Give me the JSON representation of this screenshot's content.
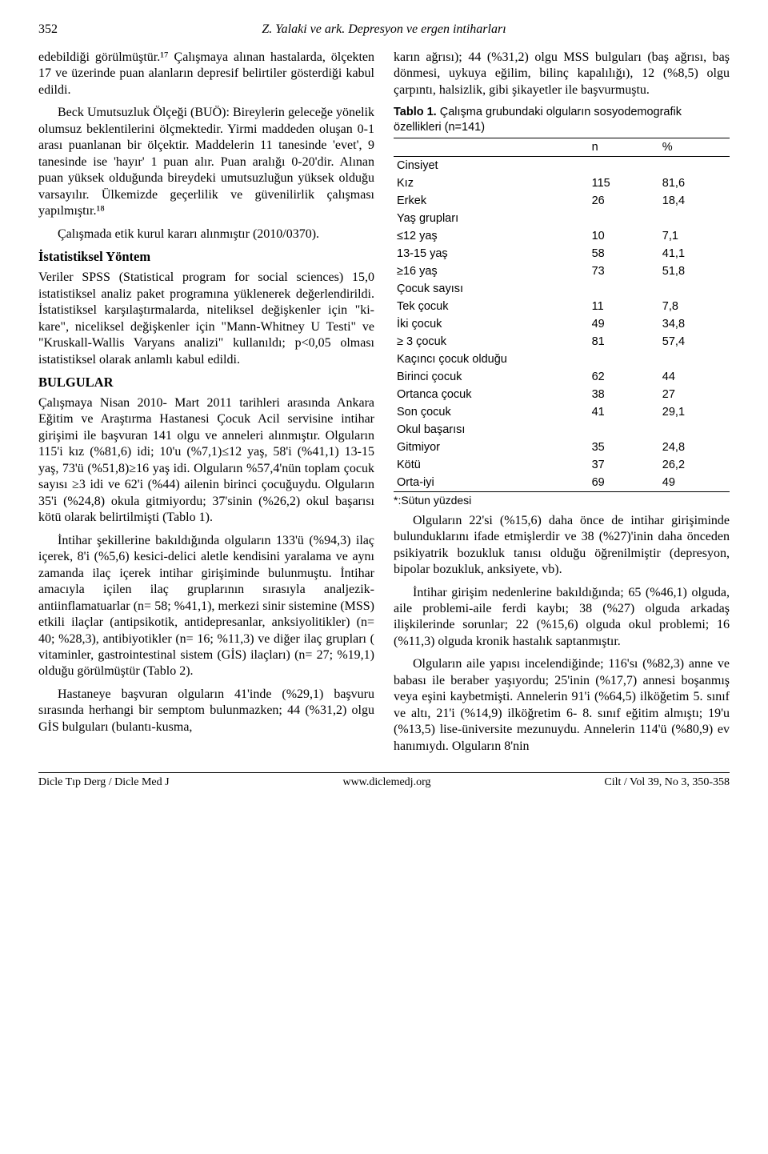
{
  "header": {
    "page_number": "352",
    "running_head": "Z. Yalaki ve ark. Depresyon ve ergen intiharları"
  },
  "left": {
    "p1": "edebildiği görülmüştür.¹⁷ Çalışmaya alınan hastalarda, ölçekten 17 ve üzerinde puan alanların depresif belirtiler gösterdiği kabul edildi.",
    "p2": "Beck Umutsuzluk Ölçeği (BUÖ): Bireylerin geleceğe yönelik olumsuz beklentilerini ölçmektedir. Yirmi maddeden oluşan 0-1 arası puanlanan bir ölçektir. Maddelerin 11 tanesinde 'evet', 9 tanesinde ise 'hayır' 1 puan alır. Puan aralığı 0-20'dir. Alınan puan yüksek olduğunda bireydeki umutsuzluğun yüksek olduğu varsayılır. Ülkemizde geçerlilik ve güvenilirlik çalışması yapılmıştır.¹⁸",
    "p3": "Çalışmada etik kurul kararı alınmıştır (2010/0370).",
    "h1": "İstatistiksel Yöntem",
    "p4": "Veriler SPSS (Statistical program for social sciences) 15,0 istatistiksel analiz paket programına yüklenerek değerlendirildi. İstatistiksel karşılaştırmalarda, niteliksel değişkenler için \"ki-kare\", niceliksel değişkenler için \"Mann-Whitney U Testi\" ve \"Kruskall-Wallis Varyans analizi\" kullanıldı; p<0,05 olması istatistiksel olarak anlamlı kabul edildi.",
    "h2": "BULGULAR",
    "p5": "Çalışmaya Nisan 2010- Mart 2011 tarihleri arasında Ankara Eğitim ve Araştırma Hastanesi Çocuk Acil servisine intihar girişimi ile başvuran 141 olgu ve anneleri alınmıştır. Olguların 115'i kız (%81,6) idi; 10'u (%7,1)≤12 yaş, 58'i (%41,1) 13-15 yaş, 73'ü (%51,8)≥16 yaş idi. Olguların %57,4'nün toplam çocuk sayısı ≥3 idi ve 62'i (%44) ailenin birinci çocuğuydu. Olguların 35'i (%24,8) okula gitmiyordu; 37'sinin (%26,2) okul başarısı kötü olarak belirtilmişti (Tablo 1).",
    "p6": "İntihar şekillerine bakıldığında olguların 133'ü (%94,3) ilaç içerek, 8'i (%5,6) kesici-delici aletle kendisini yaralama ve aynı zamanda ilaç içerek intihar girişiminde bulunmuştu. İntihar amacıyla içilen ilaç gruplarının sırasıyla analjezik-antiinflamatuarlar (n= 58; %41,1), merkezi sinir sistemine (MSS) etkili ilaçlar (antipsikotik, antidepresanlar, anksiyolitikler) (n= 40; %28,3), antibiyotikler (n= 16; %11,3) ve diğer ilaç grupları ( vitaminler, gastrointestinal sistem (GİS) ilaçları) (n= 27; %19,1) olduğu görülmüştür (Tablo 2).",
    "p7": "Hastaneye başvuran olguların 41'inde (%29,1) başvuru sırasında herhangi bir semptom bulunmazken; 44 (%31,2) olgu GİS bulguları (bulantı-kusma,"
  },
  "right": {
    "p1": "karın ağrısı); 44 (%31,2) olgu MSS bulguları (baş ağrısı, baş dönmesi, uykuya eğilim, bilinç kapalılığı), 12 (%8,5) olgu çarpıntı, halsizlik, gibi şikayetler ile başvurmuştu.",
    "table1": {
      "caption_label": "Tablo 1.",
      "caption_text": " Çalışma grubundaki olguların sosyodemografik özellikleri (n=141)",
      "columns": [
        "",
        "n",
        "%"
      ],
      "rows": [
        {
          "label": "Cinsiyet",
          "n": "",
          "pct": "",
          "section": true
        },
        {
          "label": "Kız",
          "n": "115",
          "pct": "81,6"
        },
        {
          "label": "Erkek",
          "n": "26",
          "pct": "18,4"
        },
        {
          "label": "Yaş grupları",
          "n": "",
          "pct": "",
          "section": true
        },
        {
          "label": "≤12 yaş",
          "n": "10",
          "pct": "7,1"
        },
        {
          "label": "13-15 yaş",
          "n": "58",
          "pct": "41,1"
        },
        {
          "label": "≥16 yaş",
          "n": "73",
          "pct": "51,8"
        },
        {
          "label": "Çocuk sayısı",
          "n": "",
          "pct": "",
          "section": true
        },
        {
          "label": "Tek çocuk",
          "n": "11",
          "pct": "7,8"
        },
        {
          "label": "İki çocuk",
          "n": "49",
          "pct": "34,8"
        },
        {
          "label": "≥ 3 çocuk",
          "n": "81",
          "pct": "57,4"
        },
        {
          "label": "Kaçıncı çocuk olduğu",
          "n": "",
          "pct": "",
          "section": true
        },
        {
          "label": "Birinci çocuk",
          "n": "62",
          "pct": "44"
        },
        {
          "label": "Ortanca çocuk",
          "n": "38",
          "pct": "27"
        },
        {
          "label": "Son çocuk",
          "n": "41",
          "pct": "29,1"
        },
        {
          "label": "Okul başarısı",
          "n": "",
          "pct": "",
          "section": true
        },
        {
          "label": "Gitmiyor",
          "n": "35",
          "pct": "24,8"
        },
        {
          "label": "Kötü",
          "n": "37",
          "pct": "26,2"
        },
        {
          "label": "Orta-iyi",
          "n": "69",
          "pct": "49",
          "last": true
        }
      ],
      "note": "*:Sütun yüzdesi"
    },
    "p2": "Olguların 22'si (%15,6) daha önce de intihar girişiminde bulunduklarını ifade etmişlerdir ve 38 (%27)'inin daha önceden psikiyatrik bozukluk tanısı olduğu öğrenilmiştir (depresyon, bipolar bozukluk, anksiyete, vb).",
    "p3": "İntihar girişim nedenlerine bakıldığında; 65 (%46,1) olguda, aile problemi-aile ferdi kaybı; 38 (%27) olguda arkadaş ilişkilerinde sorunlar; 22 (%15,6) olguda okul problemi; 16 (%11,3) olguda kronik hastalık saptanmıştır.",
    "p4": "Olguların aile yapısı incelendiğinde; 116'sı (%82,3) anne ve babası ile beraber yaşıyordu; 25'inin (%17,7) annesi boşanmış veya eşini kaybetmişti. Annelerin 91'i (%64,5) ilköğetim 5. sınıf ve altı, 21'i (%14,9) ilköğretim 6- 8. sınıf eğitim almıştı; 19'u (%13,5) lise-üniversite mezunuydu. Annelerin 114'ü (%80,9) ev hanımıydı. Olguların 8'nin"
  },
  "footer": {
    "left": "Dicle Tıp Derg / Dicle Med J",
    "center": "www.diclemedj.org",
    "right": "Cilt / Vol 39, No 3, 350-358"
  }
}
